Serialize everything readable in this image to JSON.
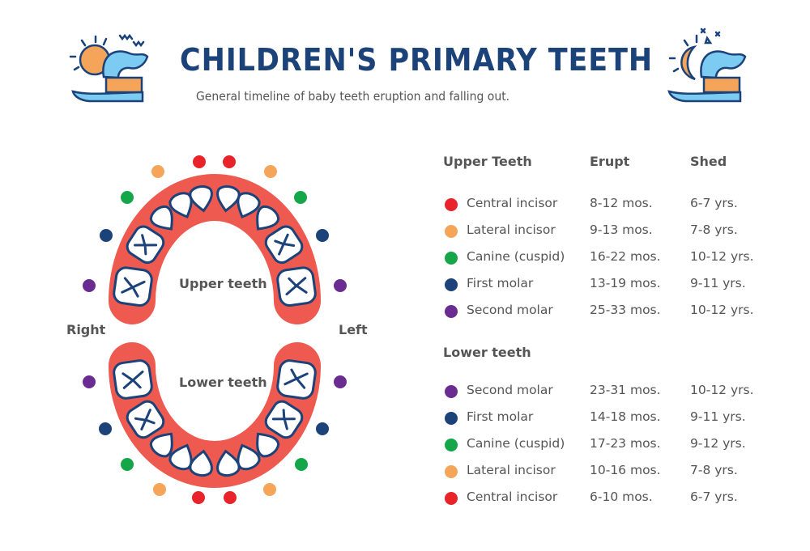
{
  "header": {
    "title": "CHILDREN'S PRIMARY TEETH",
    "subtitle": "General timeline of baby teeth eruption and falling out.",
    "left_icon": "sun-toothbrush-icon",
    "right_icon": "moon-toothbrush-icon"
  },
  "colors": {
    "central_incisor": "#e8232a",
    "lateral_incisor": "#f5a55a",
    "canine": "#16a64a",
    "first_molar": "#1b4279",
    "second_molar": "#6a2c91",
    "gum": "#ee5a50",
    "outline": "#1b4279",
    "title": "#1b4279"
  },
  "diagram": {
    "upper_label": "Upper teeth",
    "lower_label": "Lower teeth",
    "right_label": "Right",
    "left_label": "Left"
  },
  "table": {
    "upper": {
      "heading": "Upper Teeth",
      "erupt_heading": "Erupt",
      "shed_heading": "Shed",
      "rows": [
        {
          "tooth": "Central incisor",
          "type": "central_incisor",
          "erupt": "8-12 mos.",
          "shed": "6-7 yrs."
        },
        {
          "tooth": "Lateral incisor",
          "type": "lateral_incisor",
          "erupt": "9-13 mos.",
          "shed": "7-8 yrs."
        },
        {
          "tooth": "Canine (cuspid)",
          "type": "canine",
          "erupt": "16-22 mos.",
          "shed": "10-12 yrs."
        },
        {
          "tooth": "First molar",
          "type": "first_molar",
          "erupt": "13-19 mos.",
          "shed": "9-11 yrs."
        },
        {
          "tooth": "Second molar",
          "type": "second_molar",
          "erupt": "25-33 mos.",
          "shed": "10-12 yrs."
        }
      ]
    },
    "lower": {
      "heading": "Lower teeth",
      "rows": [
        {
          "tooth": "Second molar",
          "type": "second_molar",
          "erupt": "23-31 mos.",
          "shed": "10-12 yrs."
        },
        {
          "tooth": "First molar",
          "type": "first_molar",
          "erupt": "14-18 mos.",
          "shed": "9-11 yrs."
        },
        {
          "tooth": "Canine (cuspid)",
          "type": "canine",
          "erupt": "17-23 mos.",
          "shed": "9-12 yrs."
        },
        {
          "tooth": "Lateral incisor",
          "type": "lateral_incisor",
          "erupt": "10-16 mos.",
          "shed": "7-8 yrs."
        },
        {
          "tooth": "Central incisor",
          "type": "central_incisor",
          "erupt": "6-10 mos.",
          "shed": "6-7 yrs."
        }
      ]
    }
  }
}
